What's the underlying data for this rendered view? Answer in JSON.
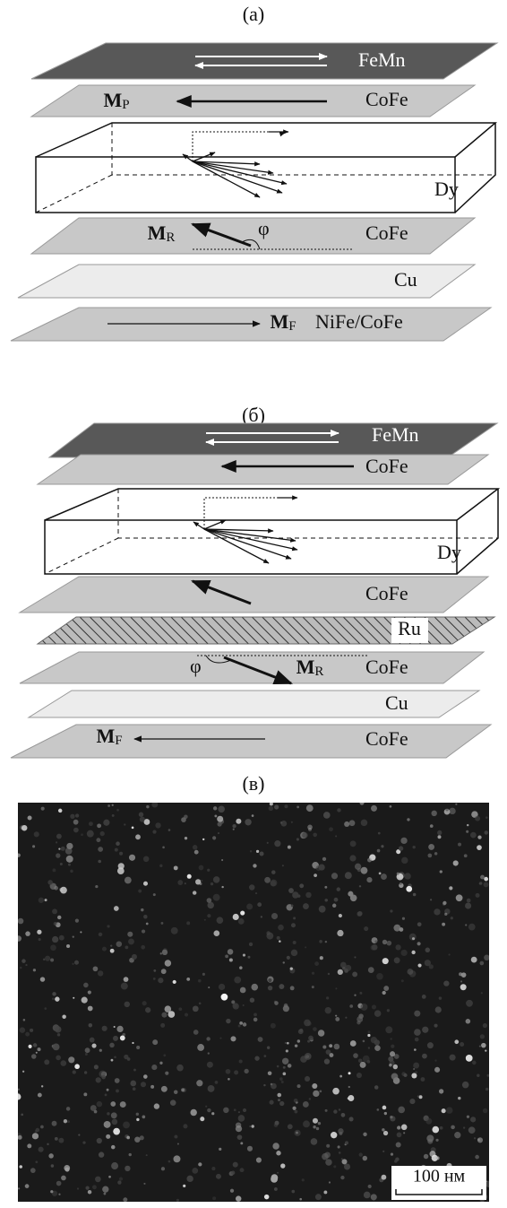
{
  "panels": [
    {
      "label": "(а)",
      "layers": [
        "FeMn",
        "CoFe",
        "Dy",
        "CoFe",
        "Cu",
        "NiFe/CoFe"
      ],
      "symbols": [
        {
          "main": "M",
          "sub": "P"
        },
        {
          "main": "M",
          "sub": "R"
        },
        {
          "main": "M",
          "sub": "F"
        }
      ],
      "angle": "φ"
    },
    {
      "label": "(б)",
      "layers": [
        "FeMn",
        "CoFe",
        "Dy",
        "CoFe",
        "Ru",
        "CoFe",
        "Cu",
        "CoFe"
      ],
      "symbols": [
        {
          "main": "M",
          "sub": "R"
        },
        {
          "main": "M",
          "sub": "F"
        }
      ],
      "angle": "φ"
    },
    {
      "label": "(в)",
      "scale_bar": "100 нм"
    }
  ]
}
